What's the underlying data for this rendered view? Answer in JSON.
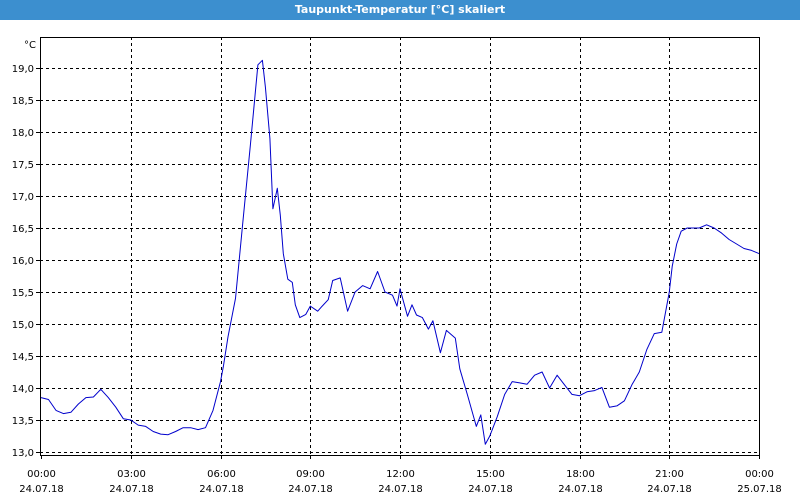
{
  "window": {
    "title": "Taupunkt-Temperatur [°C] skaliert"
  },
  "colors": {
    "titlebar": "#3c8fcf",
    "series": "#0000cc",
    "grid": "#000000"
  },
  "chart_data": {
    "type": "line",
    "title": "Taupunkt-Temperatur [°C] skaliert",
    "ylabel": "°C",
    "xlabel": "",
    "ylim": [
      12.9,
      19.4
    ],
    "xlim": [
      0,
      24
    ],
    "grid": true,
    "y_ticks": [
      "13,0",
      "13,5",
      "14,0",
      "14,5",
      "15,0",
      "15,5",
      "16,0",
      "16,5",
      "17,0",
      "17,5",
      "18,0",
      "18,5",
      "19,0"
    ],
    "x_ticks": [
      {
        "time": "00:00",
        "date": "24.07.18"
      },
      {
        "time": "03:00",
        "date": "24.07.18"
      },
      {
        "time": "06:00",
        "date": "24.07.18"
      },
      {
        "time": "09:00",
        "date": "24.07.18"
      },
      {
        "time": "12:00",
        "date": "24.07.18"
      },
      {
        "time": "15:00",
        "date": "24.07.18"
      },
      {
        "time": "18:00",
        "date": "24.07.18"
      },
      {
        "time": "21:00",
        "date": "24.07.18"
      },
      {
        "time": "00:00",
        "date": "25.07.18"
      }
    ],
    "series": [
      {
        "x": [
          0.0,
          0.25,
          0.5,
          0.75,
          1.0,
          1.25,
          1.5,
          1.75,
          2.0,
          2.25,
          2.5,
          2.75,
          3.0,
          3.25,
          3.5,
          3.75,
          4.0,
          4.25,
          4.5,
          4.75,
          5.0,
          5.25,
          5.5,
          5.75,
          6.0,
          6.1,
          6.25,
          6.5,
          6.75,
          7.0,
          7.25,
          7.4,
          7.5,
          7.65,
          7.75,
          7.9,
          8.0,
          8.1,
          8.25,
          8.4,
          8.5,
          8.65,
          8.85,
          9.0,
          9.25,
          9.4,
          9.6,
          9.75,
          10.0,
          10.25,
          10.5,
          10.75,
          11.0,
          11.25,
          11.5,
          11.75,
          11.9,
          12.0,
          12.25,
          12.4,
          12.55,
          12.75,
          12.95,
          13.1,
          13.35,
          13.55,
          13.85,
          14.0,
          14.25,
          14.55,
          14.7,
          14.85,
          15.0,
          15.25,
          15.5,
          15.75,
          16.0,
          16.25,
          16.5,
          16.75,
          17.0,
          17.25,
          17.5,
          17.75,
          18.0,
          18.25,
          18.5,
          18.75,
          19.0,
          19.25,
          19.5,
          19.75,
          20.0,
          20.25,
          20.5,
          20.75,
          21.0,
          21.1,
          21.25,
          21.4,
          21.6,
          21.75,
          22.0,
          22.25,
          22.5,
          22.75,
          23.0,
          23.25,
          23.5,
          23.75,
          24.0
        ],
        "values": [
          13.85,
          13.82,
          13.65,
          13.6,
          13.62,
          13.75,
          13.85,
          13.86,
          13.98,
          13.85,
          13.7,
          13.52,
          13.5,
          13.42,
          13.4,
          13.32,
          13.28,
          13.27,
          13.32,
          13.38,
          13.38,
          13.35,
          13.38,
          13.65,
          14.1,
          14.35,
          14.8,
          15.4,
          16.6,
          17.8,
          19.05,
          19.12,
          18.7,
          17.9,
          16.8,
          17.12,
          16.7,
          16.1,
          15.7,
          15.65,
          15.3,
          15.1,
          15.15,
          15.28,
          15.2,
          15.28,
          15.38,
          15.68,
          15.72,
          15.2,
          15.5,
          15.6,
          15.55,
          15.82,
          15.5,
          15.45,
          15.28,
          15.55,
          15.12,
          15.3,
          15.14,
          15.1,
          14.92,
          15.05,
          14.55,
          14.9,
          14.78,
          14.3,
          13.9,
          13.4,
          13.58,
          13.12,
          13.25,
          13.55,
          13.9,
          14.1,
          14.08,
          14.06,
          14.2,
          14.25,
          14.0,
          14.2,
          14.05,
          13.9,
          13.88,
          13.94,
          13.96,
          14.01,
          13.7,
          13.72,
          13.8,
          14.05,
          14.25,
          14.6,
          14.85,
          14.87,
          15.5,
          15.9,
          16.25,
          16.45,
          16.5,
          16.5,
          16.5,
          16.55,
          16.5,
          16.42,
          16.32,
          16.25,
          16.18,
          16.15,
          16.1
        ]
      }
    ]
  }
}
